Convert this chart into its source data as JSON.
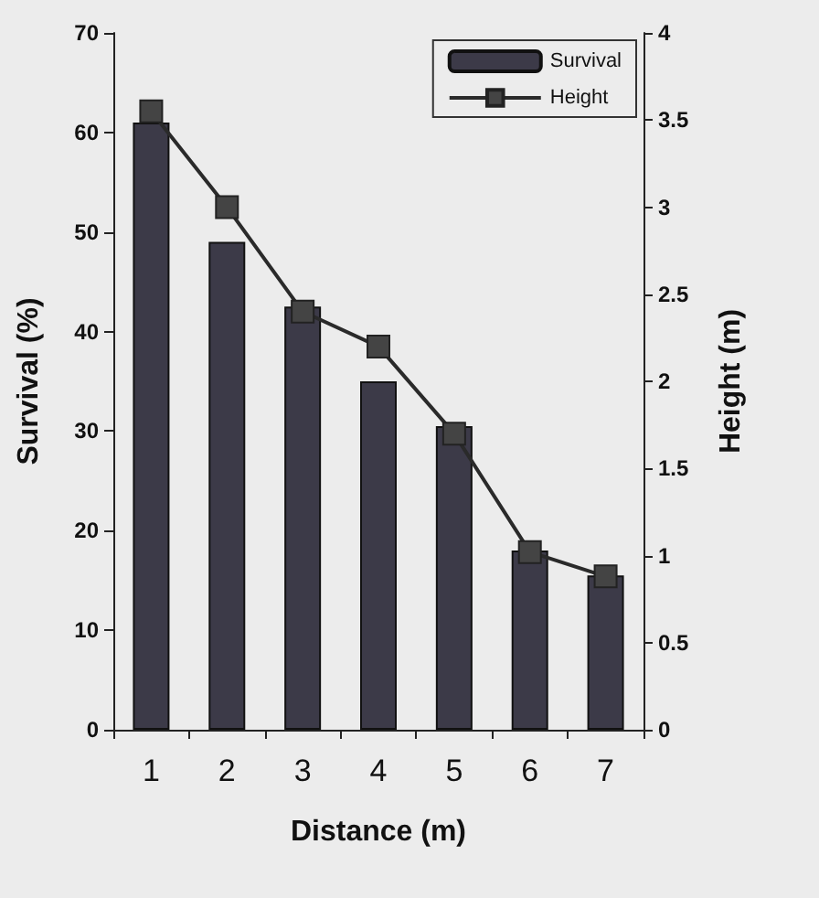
{
  "chart_data": {
    "type": "bar",
    "xlabel": "Distance (m)",
    "ylabel": "Survival (%)",
    "y2label": "Height (m)",
    "categories": [
      "1",
      "2",
      "3",
      "4",
      "5",
      "6",
      "7"
    ],
    "series": [
      {
        "name": "Survival",
        "color": "#3c3a48",
        "values": [
          61,
          49,
          42.5,
          35,
          30.5,
          18,
          15.5
        ]
      },
      {
        "name": "Height",
        "type": "line",
        "axis": "y2",
        "color": "#2a2a2a",
        "marker": "square",
        "values": [
          3.55,
          3.0,
          2.4,
          2.2,
          1.7,
          1.02,
          0.88
        ]
      }
    ],
    "ylim": [
      0,
      70
    ],
    "yticks": [
      0,
      10,
      20,
      30,
      40,
      50,
      60,
      70
    ],
    "y2lim": [
      0,
      4
    ],
    "y2ticks": [
      0,
      0.5,
      1,
      1.5,
      2,
      2.5,
      3,
      3.5,
      4
    ],
    "grid": false,
    "legend": "top right"
  }
}
